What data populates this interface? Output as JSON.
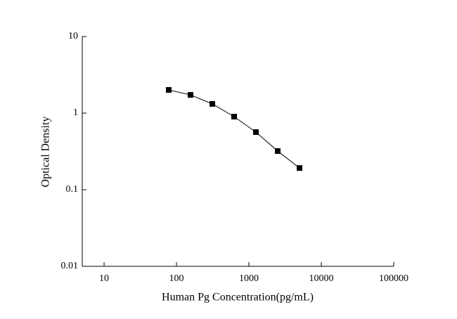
{
  "chart_data": {
    "type": "line",
    "xlabel": "Human Pg Concentration(pg/mL)",
    "ylabel": "Optical Density",
    "x": [
      78.125,
      156.25,
      312.5,
      625,
      1250,
      2500,
      5000
    ],
    "series": [
      {
        "color": "#000000",
        "values": [
          2.01,
          1.73,
          1.32,
          0.9,
          0.565,
          0.32,
          0.192
        ]
      }
    ],
    "xlim": [
      5,
      100000
    ],
    "ylim": [
      0.01,
      10
    ],
    "xticks": [
      10,
      100,
      1000,
      10000,
      100000
    ],
    "yticks": [
      0.01,
      0.1,
      1,
      10
    ],
    "xscale": "log",
    "yscale": "log",
    "marker": "square"
  }
}
